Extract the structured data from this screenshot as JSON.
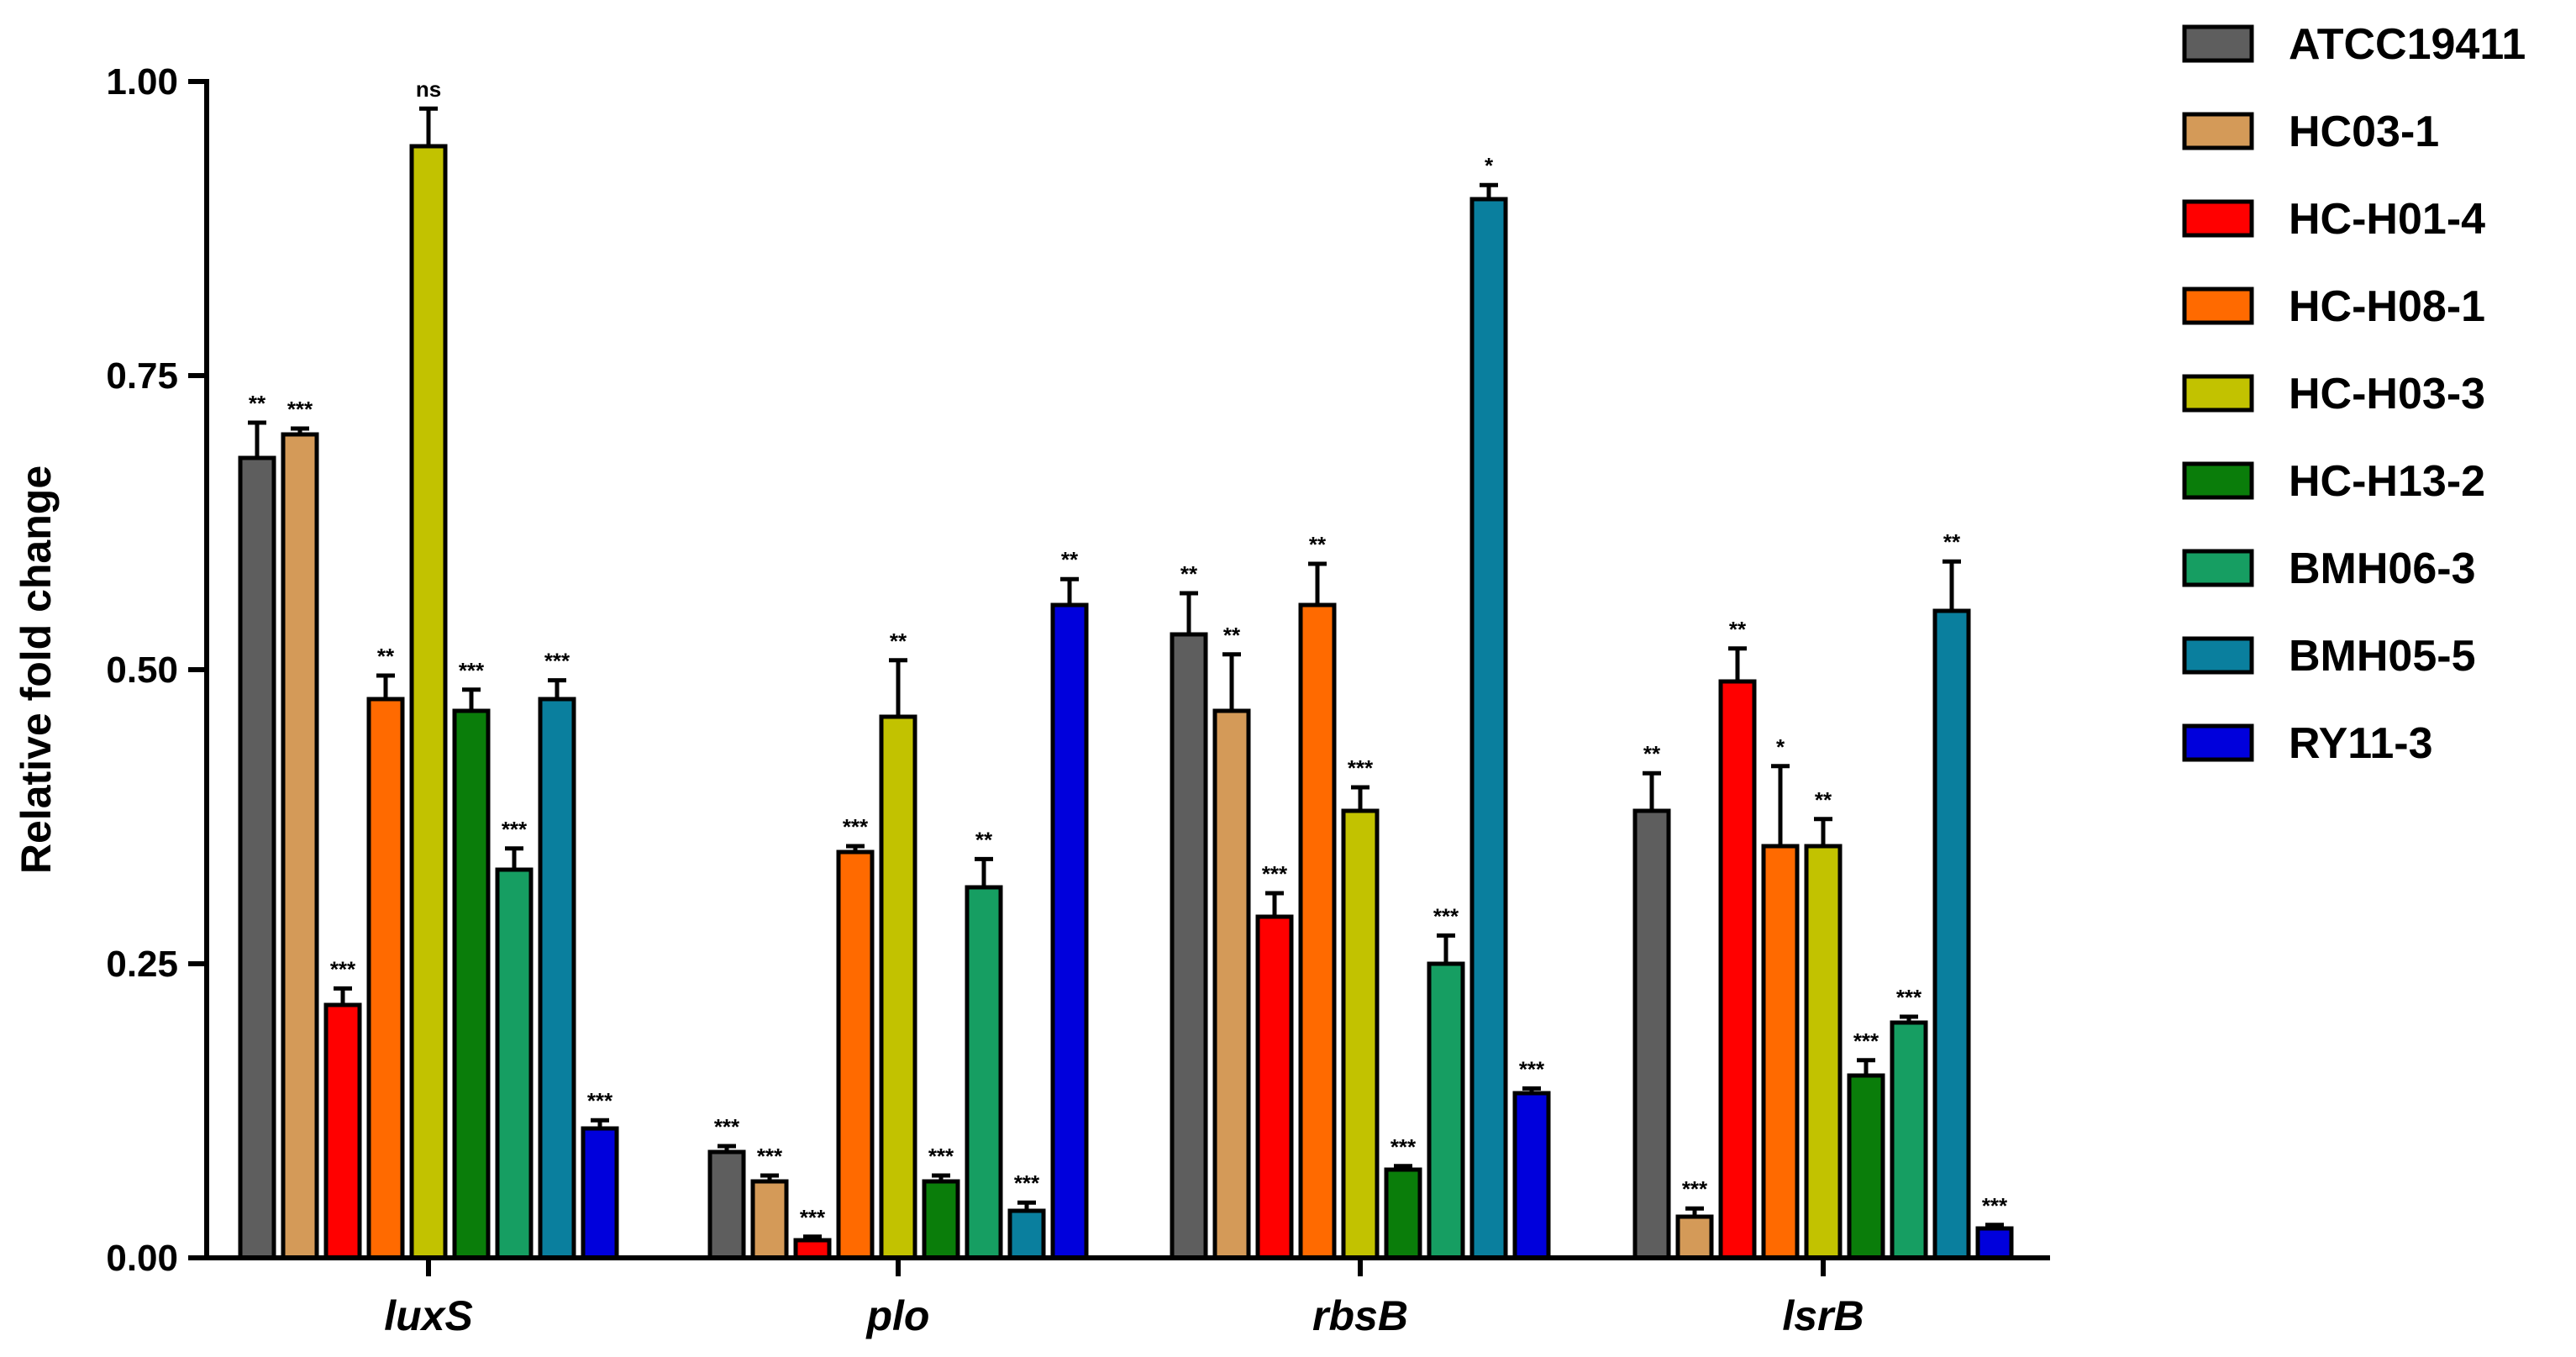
{
  "chart_data": {
    "type": "bar",
    "title": "",
    "xlabel": "",
    "ylabel": "Relative fold change",
    "ylim": [
      0,
      1.0
    ],
    "yticks": [
      "0.00",
      "0.25",
      "0.50",
      "0.75",
      "1.00"
    ],
    "ytick_values": [
      0,
      0.25,
      0.5,
      0.75,
      1.0
    ],
    "grid": false,
    "legend_position": "right",
    "categories": [
      "luxS",
      "plo",
      "rbsB",
      "lsrB"
    ],
    "series": [
      {
        "name": "ATCC19411",
        "color": "#5e5e5e",
        "values": [
          0.68,
          0.09,
          0.53,
          0.38
        ],
        "errors": [
          0.03,
          0.005,
          0.035,
          0.032
        ],
        "sig": [
          "**",
          "***",
          "**",
          "**"
        ]
      },
      {
        "name": "HC03-1",
        "color": "#d49a58",
        "values": [
          0.7,
          0.065,
          0.465,
          0.035
        ],
        "errors": [
          0.005,
          0.005,
          0.048,
          0.007
        ],
        "sig": [
          "***",
          "***",
          "**",
          "***"
        ]
      },
      {
        "name": "HC-H01-4",
        "color": "#ff0000",
        "values": [
          0.215,
          0.015,
          0.29,
          0.49
        ],
        "errors": [
          0.014,
          0.003,
          0.02,
          0.028
        ],
        "sig": [
          "***",
          "***",
          "***",
          "**"
        ]
      },
      {
        "name": "HC-H08-1",
        "color": "#ff6a00",
        "values": [
          0.475,
          0.345,
          0.555,
          0.35
        ],
        "errors": [
          0.02,
          0.005,
          0.035,
          0.068
        ],
        "sig": [
          "**",
          "***",
          "**",
          "*"
        ]
      },
      {
        "name": "HC-H03-3",
        "color": "#c2c200",
        "values": [
          0.945,
          0.46,
          0.38,
          0.35
        ],
        "errors": [
          0.032,
          0.048,
          0.02,
          0.023
        ],
        "sig": [
          "ns",
          "**",
          "***",
          "**"
        ]
      },
      {
        "name": "HC-H13-2",
        "color": "#0a7d0a",
        "values": [
          0.465,
          0.065,
          0.075,
          0.155
        ],
        "errors": [
          0.018,
          0.005,
          0.003,
          0.013
        ],
        "sig": [
          "***",
          "***",
          "***",
          "***"
        ]
      },
      {
        "name": "BMH06-3",
        "color": "#169e62",
        "values": [
          0.33,
          0.315,
          0.25,
          0.2
        ],
        "errors": [
          0.018,
          0.024,
          0.024,
          0.005
        ],
        "sig": [
          "***",
          "**",
          "***",
          "***"
        ]
      },
      {
        "name": "BMH05-5",
        "color": "#0a7f9e",
        "values": [
          0.475,
          0.04,
          0.9,
          0.55
        ],
        "errors": [
          0.016,
          0.007,
          0.012,
          0.042
        ],
        "sig": [
          "***",
          "***",
          "*",
          "**"
        ]
      },
      {
        "name": "RY11-3",
        "color": "#0000dc",
        "values": [
          0.11,
          0.555,
          0.14,
          0.025
        ],
        "errors": [
          0.007,
          0.022,
          0.004,
          0.003
        ],
        "sig": [
          "***",
          "**",
          "***",
          "***"
        ]
      }
    ]
  }
}
